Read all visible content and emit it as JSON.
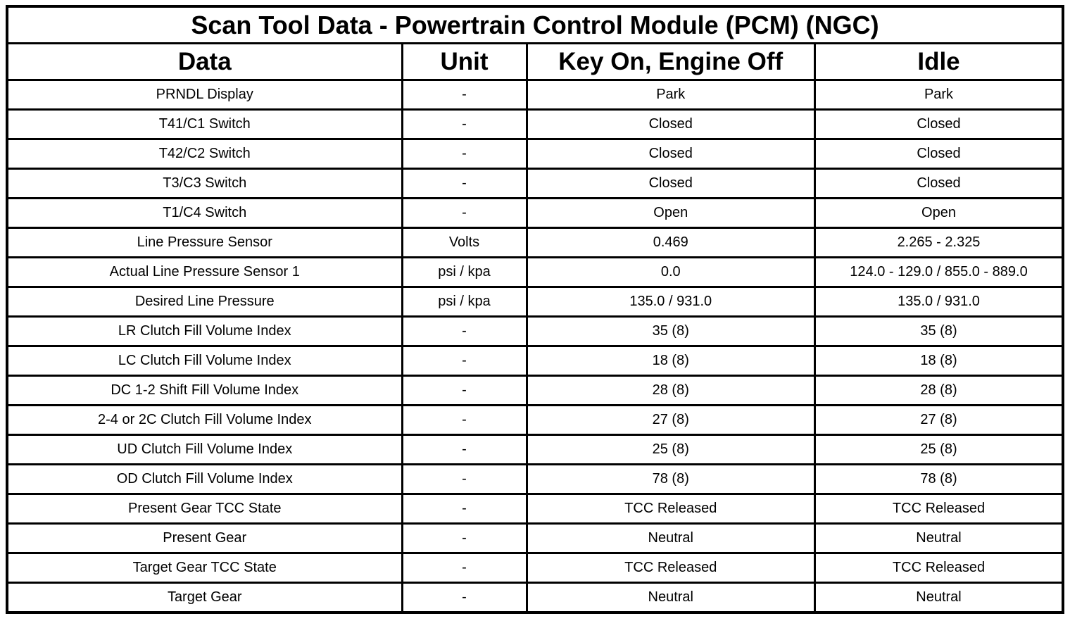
{
  "table": {
    "title": "Scan Tool Data - Powertrain Control Module (PCM) (NGC)",
    "columns": [
      "Data",
      "Unit",
      "Key On, Engine Off",
      "Idle"
    ],
    "rows": [
      [
        "PRNDL Display",
        "-",
        "Park",
        "Park"
      ],
      [
        "T41/C1 Switch",
        "-",
        "Closed",
        "Closed"
      ],
      [
        "T42/C2 Switch",
        "-",
        "Closed",
        "Closed"
      ],
      [
        "T3/C3 Switch",
        "-",
        "Closed",
        "Closed"
      ],
      [
        "T1/C4 Switch",
        "-",
        "Open",
        "Open"
      ],
      [
        "Line Pressure Sensor",
        "Volts",
        "0.469",
        "2.265 - 2.325"
      ],
      [
        "Actual Line Pressure Sensor 1",
        "psi / kpa",
        "0.0",
        "124.0 - 129.0 / 855.0 - 889.0"
      ],
      [
        "Desired Line Pressure",
        "psi / kpa",
        "135.0 / 931.0",
        "135.0 / 931.0"
      ],
      [
        "LR Clutch Fill Volume Index",
        "-",
        "35 (8)",
        "35 (8)"
      ],
      [
        "LC Clutch Fill Volume Index",
        "-",
        "18 (8)",
        "18 (8)"
      ],
      [
        "DC 1-2 Shift Fill Volume Index",
        "-",
        "28 (8)",
        "28 (8)"
      ],
      [
        "2-4 or 2C Clutch Fill Volume Index",
        "-",
        "27 (8)",
        "27 (8)"
      ],
      [
        "UD Clutch Fill Volume Index",
        "-",
        "25 (8)",
        "25 (8)"
      ],
      [
        "OD Clutch Fill Volume Index",
        "-",
        "78 (8)",
        "78 (8)"
      ],
      [
        "Present Gear TCC State",
        "-",
        "TCC Released",
        "TCC Released"
      ],
      [
        "Present Gear",
        "-",
        "Neutral",
        "Neutral"
      ],
      [
        "Target Gear TCC State",
        "-",
        "TCC Released",
        "TCC Released"
      ],
      [
        "Target Gear",
        "-",
        "Neutral",
        "Neutral"
      ]
    ]
  },
  "colors": {
    "border": "#000000",
    "background": "#ffffff",
    "text": "#000000"
  }
}
